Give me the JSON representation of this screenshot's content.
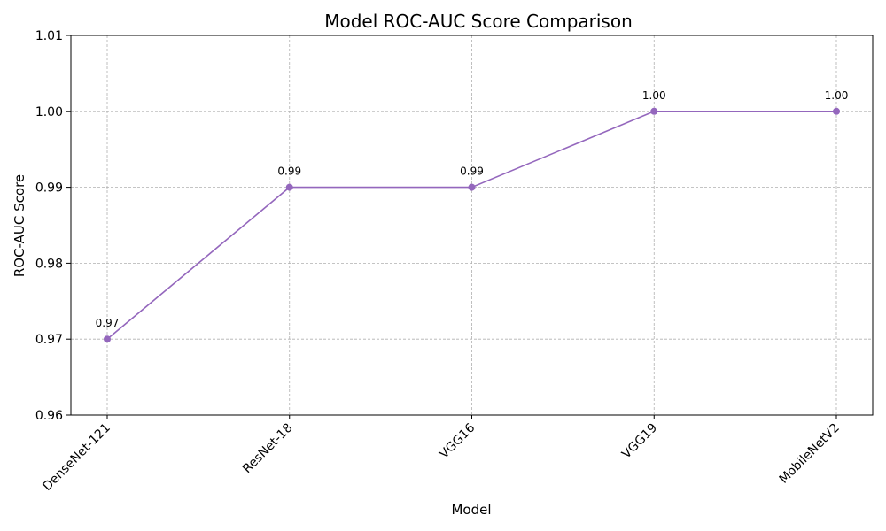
{
  "chart_data": {
    "type": "line",
    "title": "Model ROC-AUC Score Comparison",
    "xlabel": "Model",
    "ylabel": "ROC-AUC Score",
    "categories": [
      "DenseNet-121",
      "ResNet-18",
      "VGG16",
      "VGG19",
      "MobileNetV2"
    ],
    "values": [
      0.97,
      0.99,
      0.99,
      1.0,
      1.0
    ],
    "data_labels": [
      "0.97",
      "0.99",
      "0.99",
      "1.00",
      "1.00"
    ],
    "ylim": [
      0.96,
      1.01
    ],
    "yticks": [
      0.96,
      0.97,
      0.98,
      0.99,
      1.0,
      1.01
    ],
    "ytick_labels": [
      "0.96",
      "0.97",
      "0.98",
      "0.99",
      "1.00",
      "1.01"
    ],
    "grid": true,
    "x_tick_rotation_deg": 45,
    "color": "#9467bd"
  }
}
